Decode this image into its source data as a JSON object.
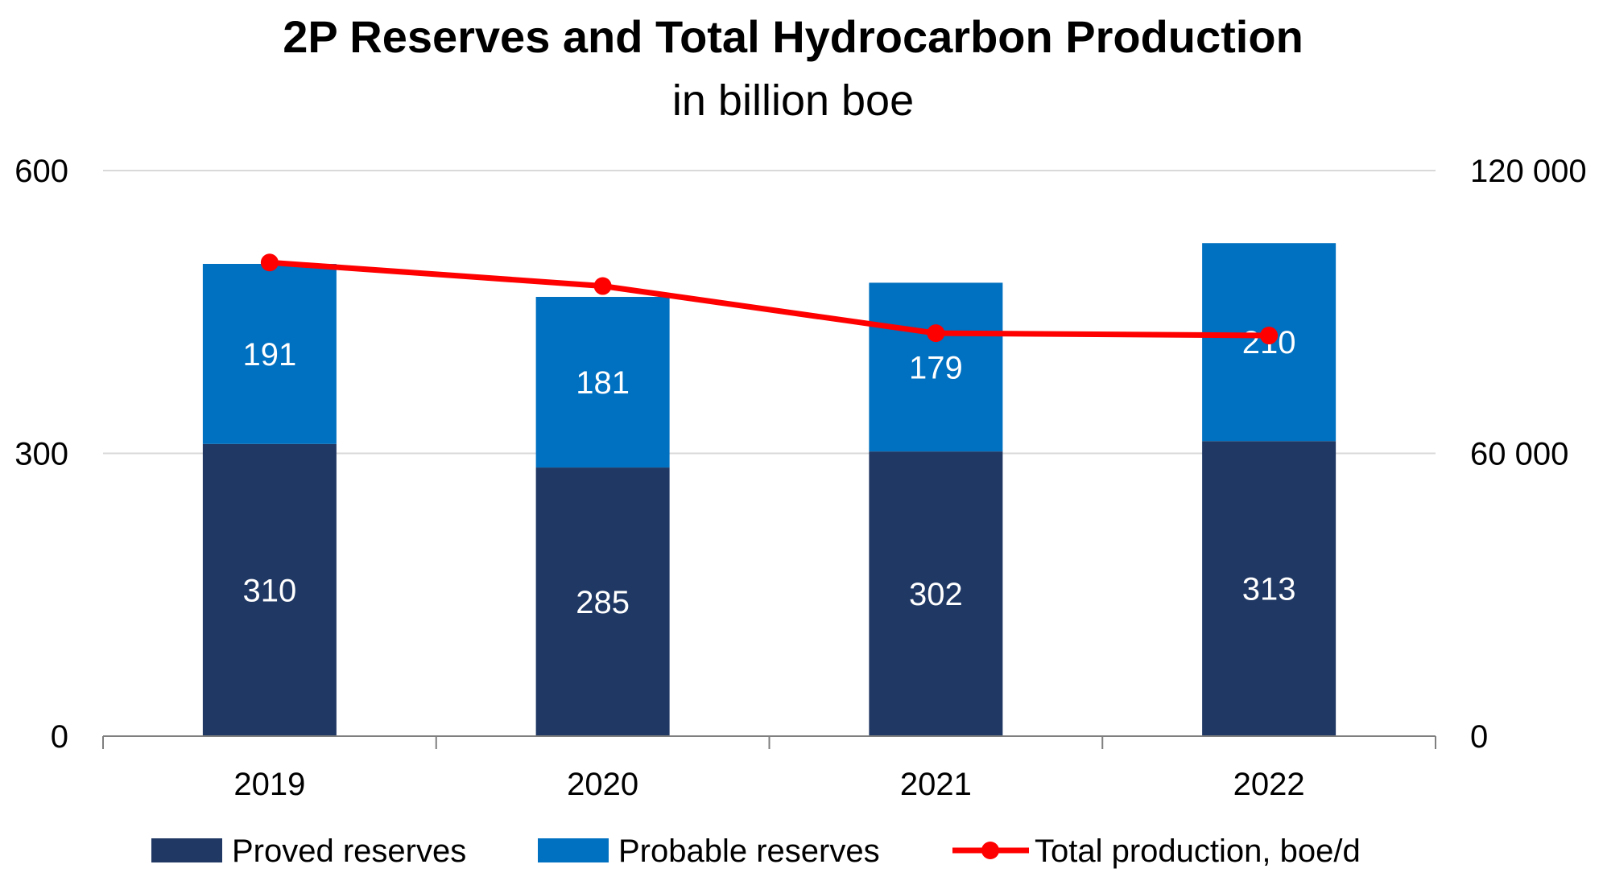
{
  "chart_data": {
    "type": "bar",
    "title": "2P Reserves and Total Hydrocarbon Production",
    "subtitle": "in billion boe",
    "categories": [
      "2019",
      "2020",
      "2021",
      "2022"
    ],
    "series": [
      {
        "name": "Proved reserves",
        "kind": "bar",
        "stack": "reserves",
        "axis": "left",
        "color": "#203864",
        "values": [
          310,
          285,
          302,
          313
        ]
      },
      {
        "name": "Probable reserves",
        "kind": "bar",
        "stack": "reserves",
        "axis": "left",
        "color": "#0070C0",
        "values": [
          191,
          181,
          179,
          210
        ]
      },
      {
        "name": "Total production, boe/d",
        "kind": "line",
        "axis": "right",
        "color": "#FF0000",
        "values": [
          100500,
          95500,
          85500,
          85000
        ]
      }
    ],
    "y_left": {
      "ylim": [
        0,
        600
      ],
      "ticks": [
        "0",
        "300",
        "600"
      ]
    },
    "y_right": {
      "ylim": [
        0,
        120000
      ],
      "ticks": [
        "0",
        "60 000",
        "120 000"
      ]
    },
    "grid": true,
    "legend": "bottom"
  }
}
